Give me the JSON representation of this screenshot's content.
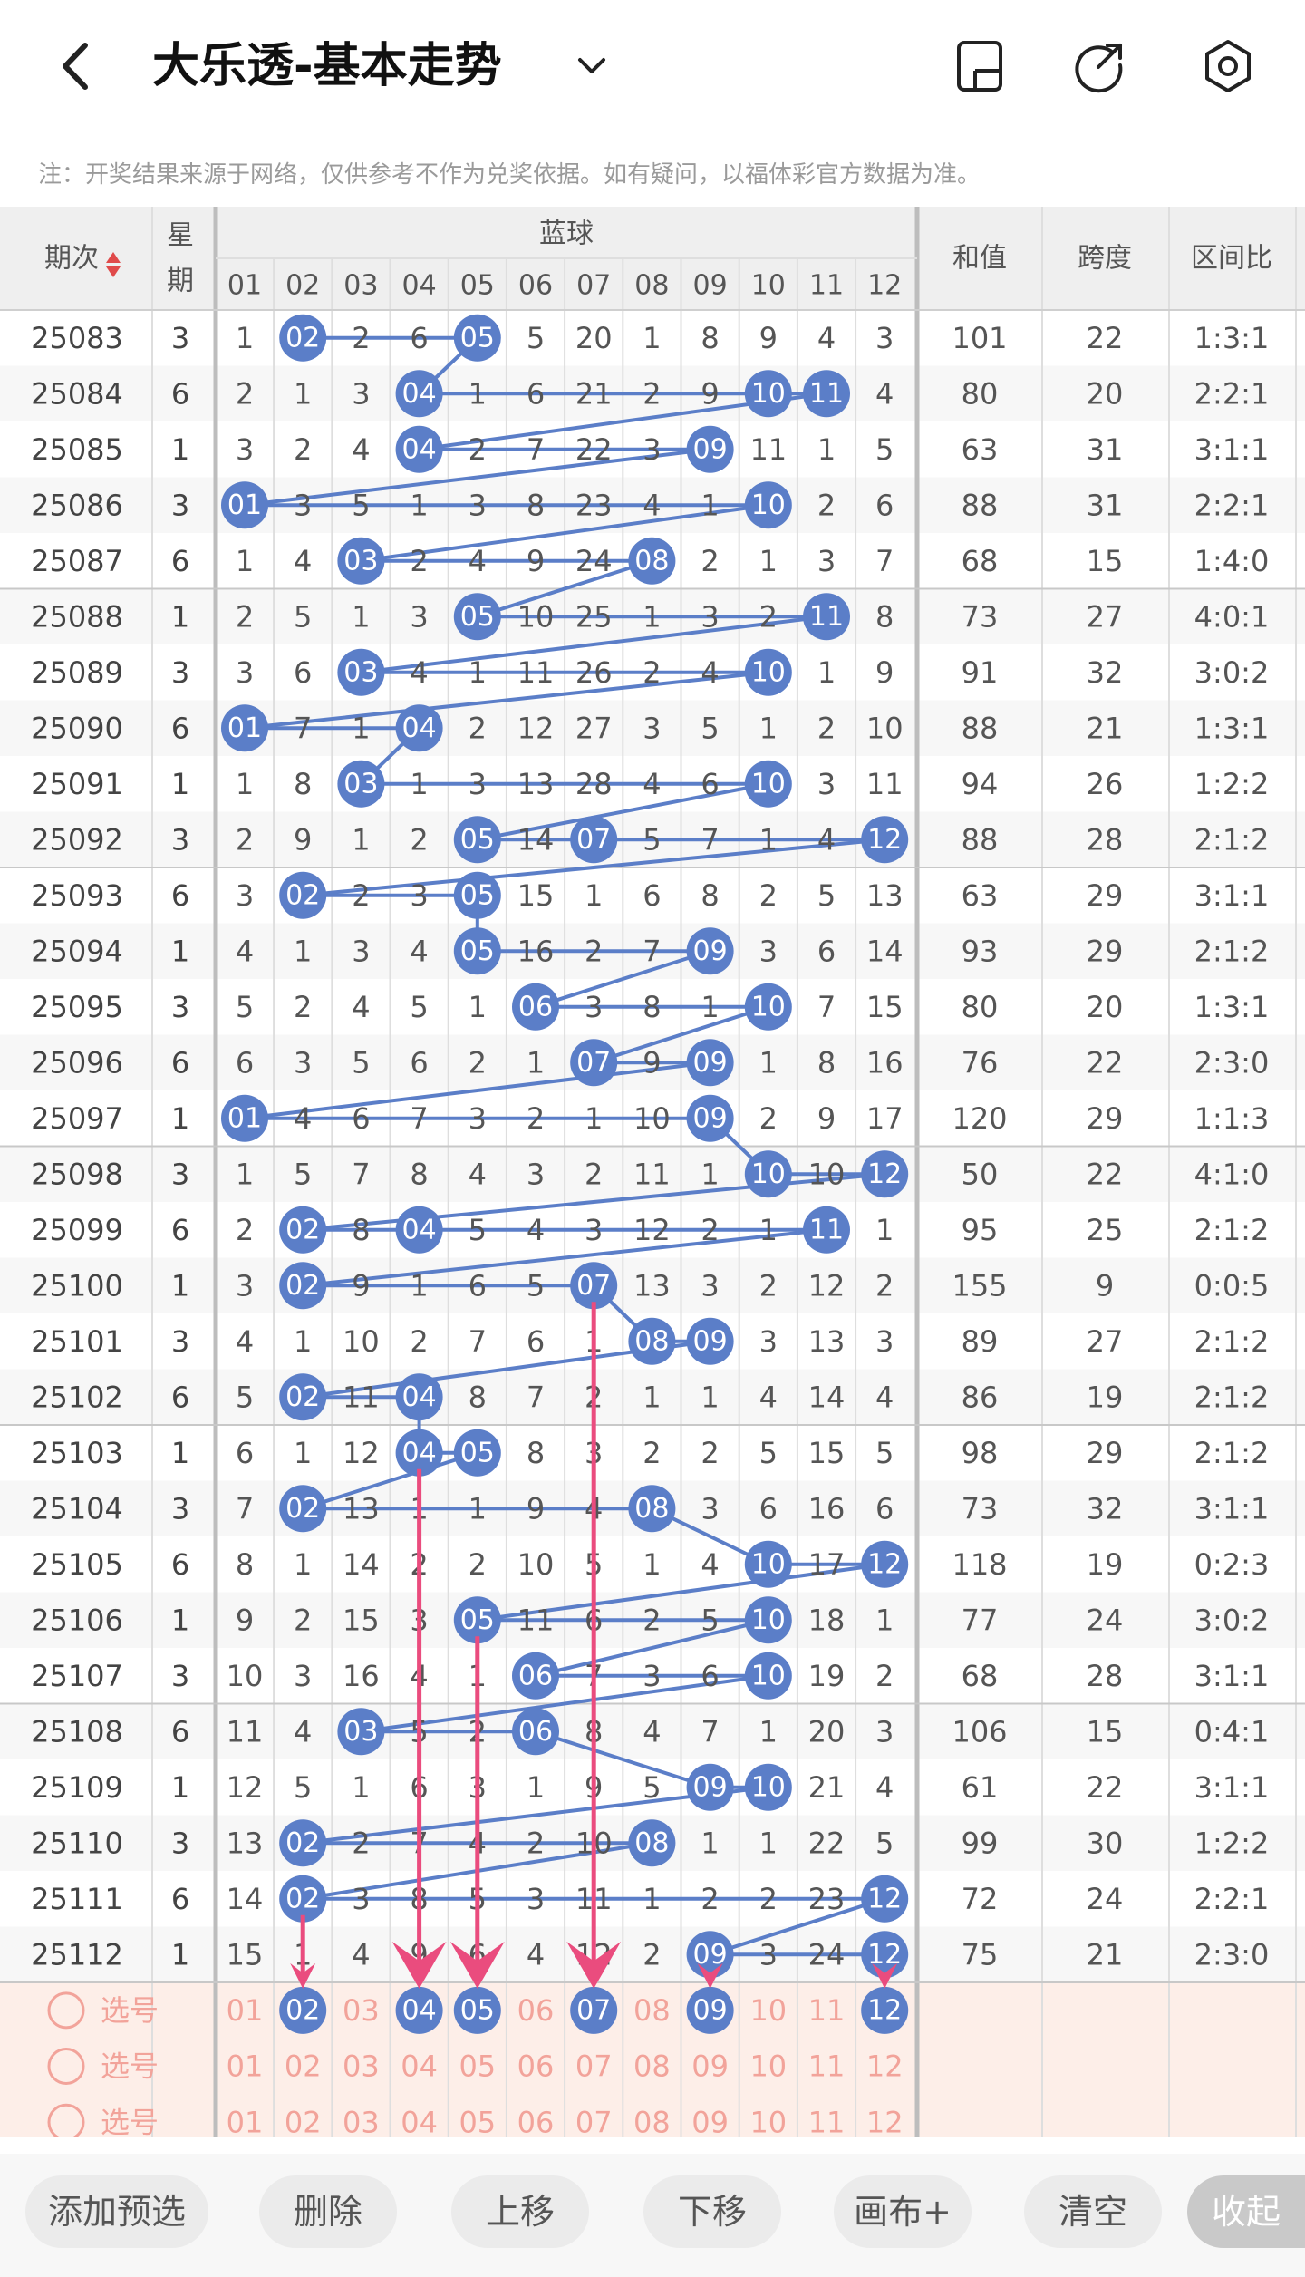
{
  "header": {
    "back_label": "‹",
    "title": "大乐透-基本走势",
    "dropdown": "chevron-down-icon",
    "icons": [
      "phone-layout-icon",
      "share-icon",
      "settings-icon"
    ]
  },
  "note": "注：开奖结果来源于网络，仅供参考不作为兑奖依据。如有疑问，以福体彩官方数据为准。",
  "table": {
    "col_issue": "期次",
    "col_week": "星期",
    "group_blue": "蓝球",
    "col_sum": "和值",
    "col_span": "跨度",
    "col_ratio": "区间比",
    "balls": [
      "01",
      "02",
      "03",
      "04",
      "05",
      "06",
      "07",
      "08",
      "09",
      "10",
      "11",
      "12"
    ],
    "rows": [
      {
        "issue": "25083",
        "week": "3",
        "cells": [
          "1",
          "02",
          "2",
          "6",
          "05",
          "5",
          "20",
          "1",
          "8",
          "9",
          "4",
          "3"
        ],
        "sum": "101",
        "span": "22",
        "ratio": "1:3:1"
      },
      {
        "issue": "25084",
        "week": "6",
        "cells": [
          "2",
          "1",
          "3",
          "04",
          "1",
          "6",
          "21",
          "2",
          "9",
          "10",
          "11",
          "4"
        ],
        "sum": "80",
        "span": "20",
        "ratio": "2:2:1"
      },
      {
        "issue": "25085",
        "week": "1",
        "cells": [
          "3",
          "2",
          "4",
          "04",
          "2",
          "7",
          "22",
          "3",
          "09",
          "11",
          "1",
          "5"
        ],
        "sum": "63",
        "span": "31",
        "ratio": "3:1:1"
      },
      {
        "issue": "25086",
        "week": "3",
        "cells": [
          "01",
          "3",
          "5",
          "1",
          "3",
          "8",
          "23",
          "4",
          "1",
          "10",
          "2",
          "6"
        ],
        "sum": "88",
        "span": "31",
        "ratio": "2:2:1"
      },
      {
        "issue": "25087",
        "week": "6",
        "cells": [
          "1",
          "4",
          "03",
          "2",
          "4",
          "9",
          "24",
          "08",
          "2",
          "1",
          "3",
          "7"
        ],
        "sum": "68",
        "span": "15",
        "ratio": "1:4:0"
      },
      {
        "issue": "25088",
        "week": "1",
        "cells": [
          "2",
          "5",
          "1",
          "3",
          "05",
          "10",
          "25",
          "1",
          "3",
          "2",
          "11",
          "8"
        ],
        "sum": "73",
        "span": "27",
        "ratio": "4:0:1"
      },
      {
        "issue": "25089",
        "week": "3",
        "cells": [
          "3",
          "6",
          "03",
          "4",
          "1",
          "11",
          "26",
          "2",
          "4",
          "10",
          "1",
          "9"
        ],
        "sum": "91",
        "span": "32",
        "ratio": "3:0:2"
      },
      {
        "issue": "25090",
        "week": "6",
        "cells": [
          "01",
          "7",
          "1",
          "04",
          "2",
          "12",
          "27",
          "3",
          "5",
          "1",
          "2",
          "10"
        ],
        "sum": "88",
        "span": "21",
        "ratio": "1:3:1"
      },
      {
        "issue": "25091",
        "week": "1",
        "cells": [
          "1",
          "8",
          "03",
          "1",
          "3",
          "13",
          "28",
          "4",
          "6",
          "10",
          "3",
          "11"
        ],
        "sum": "94",
        "span": "26",
        "ratio": "1:2:2"
      },
      {
        "issue": "25092",
        "week": "3",
        "cells": [
          "2",
          "9",
          "1",
          "2",
          "05",
          "14",
          "07",
          "5",
          "7",
          "1",
          "4",
          "12"
        ],
        "sum": "88",
        "span": "28",
        "ratio": "2:1:2"
      },
      {
        "issue": "25093",
        "week": "6",
        "cells": [
          "3",
          "02",
          "2",
          "3",
          "05",
          "15",
          "1",
          "6",
          "8",
          "2",
          "5",
          "13"
        ],
        "sum": "63",
        "span": "29",
        "ratio": "3:1:1"
      },
      {
        "issue": "25094",
        "week": "1",
        "cells": [
          "4",
          "1",
          "3",
          "4",
          "05",
          "16",
          "2",
          "7",
          "09",
          "3",
          "6",
          "14"
        ],
        "sum": "93",
        "span": "29",
        "ratio": "2:1:2"
      },
      {
        "issue": "25095",
        "week": "3",
        "cells": [
          "5",
          "2",
          "4",
          "5",
          "1",
          "06",
          "3",
          "8",
          "1",
          "10",
          "7",
          "15"
        ],
        "sum": "80",
        "span": "20",
        "ratio": "1:3:1"
      },
      {
        "issue": "25096",
        "week": "6",
        "cells": [
          "6",
          "3",
          "5",
          "6",
          "2",
          "1",
          "07",
          "9",
          "09",
          "1",
          "8",
          "16"
        ],
        "sum": "76",
        "span": "22",
        "ratio": "2:3:0"
      },
      {
        "issue": "25097",
        "week": "1",
        "cells": [
          "01",
          "4",
          "6",
          "7",
          "3",
          "2",
          "1",
          "10",
          "09",
          "2",
          "9",
          "17"
        ],
        "sum": "120",
        "span": "29",
        "ratio": "1:1:3"
      },
      {
        "issue": "25098",
        "week": "3",
        "cells": [
          "1",
          "5",
          "7",
          "8",
          "4",
          "3",
          "2",
          "11",
          "1",
          "10",
          "10",
          "12"
        ],
        "sum": "50",
        "span": "22",
        "ratio": "4:1:0"
      },
      {
        "issue": "25099",
        "week": "6",
        "cells": [
          "2",
          "02",
          "8",
          "04",
          "5",
          "4",
          "3",
          "12",
          "2",
          "1",
          "11",
          "1"
        ],
        "sum": "95",
        "span": "25",
        "ratio": "2:1:2"
      },
      {
        "issue": "25100",
        "week": "1",
        "cells": [
          "3",
          "02",
          "9",
          "1",
          "6",
          "5",
          "07",
          "13",
          "3",
          "2",
          "12",
          "2"
        ],
        "sum": "155",
        "span": "9",
        "ratio": "0:0:5"
      },
      {
        "issue": "25101",
        "week": "3",
        "cells": [
          "4",
          "1",
          "10",
          "2",
          "7",
          "6",
          "1",
          "08",
          "09",
          "3",
          "13",
          "3"
        ],
        "sum": "89",
        "span": "27",
        "ratio": "2:1:2"
      },
      {
        "issue": "25102",
        "week": "6",
        "cells": [
          "5",
          "02",
          "11",
          "04",
          "8",
          "7",
          "2",
          "1",
          "1",
          "4",
          "14",
          "4"
        ],
        "sum": "86",
        "span": "19",
        "ratio": "2:1:2"
      },
      {
        "issue": "25103",
        "week": "1",
        "cells": [
          "6",
          "1",
          "12",
          "04",
          "05",
          "8",
          "3",
          "2",
          "2",
          "5",
          "15",
          "5"
        ],
        "sum": "98",
        "span": "29",
        "ratio": "2:1:2"
      },
      {
        "issue": "25104",
        "week": "3",
        "cells": [
          "7",
          "02",
          "13",
          "1",
          "1",
          "9",
          "4",
          "08",
          "3",
          "6",
          "16",
          "6"
        ],
        "sum": "73",
        "span": "32",
        "ratio": "3:1:1"
      },
      {
        "issue": "25105",
        "week": "6",
        "cells": [
          "8",
          "1",
          "14",
          "2",
          "2",
          "10",
          "5",
          "1",
          "4",
          "10",
          "17",
          "12"
        ],
        "sum": "118",
        "span": "19",
        "ratio": "0:2:3"
      },
      {
        "issue": "25106",
        "week": "1",
        "cells": [
          "9",
          "2",
          "15",
          "3",
          "05",
          "11",
          "6",
          "2",
          "5",
          "10",
          "18",
          "1"
        ],
        "sum": "77",
        "span": "24",
        "ratio": "3:0:2"
      },
      {
        "issue": "25107",
        "week": "3",
        "cells": [
          "10",
          "3",
          "16",
          "4",
          "1",
          "06",
          "7",
          "3",
          "6",
          "10",
          "19",
          "2"
        ],
        "sum": "68",
        "span": "28",
        "ratio": "3:1:1"
      },
      {
        "issue": "25108",
        "week": "6",
        "cells": [
          "11",
          "4",
          "03",
          "5",
          "2",
          "06",
          "8",
          "4",
          "7",
          "1",
          "20",
          "3"
        ],
        "sum": "106",
        "span": "15",
        "ratio": "0:4:1"
      },
      {
        "issue": "25109",
        "week": "1",
        "cells": [
          "12",
          "5",
          "1",
          "6",
          "3",
          "1",
          "9",
          "5",
          "09",
          "10",
          "21",
          "4"
        ],
        "sum": "61",
        "span": "22",
        "ratio": "3:1:1"
      },
      {
        "issue": "25110",
        "week": "3",
        "cells": [
          "13",
          "02",
          "2",
          "7",
          "4",
          "2",
          "10",
          "08",
          "1",
          "1",
          "22",
          "5"
        ],
        "sum": "99",
        "span": "30",
        "ratio": "1:2:2"
      },
      {
        "issue": "25111",
        "week": "6",
        "cells": [
          "14",
          "02",
          "3",
          "8",
          "5",
          "3",
          "11",
          "1",
          "2",
          "2",
          "23",
          "12"
        ],
        "sum": "72",
        "span": "24",
        "ratio": "2:2:1"
      },
      {
        "issue": "25112",
        "week": "1",
        "cells": [
          "15",
          "1",
          "4",
          "9",
          "6",
          "4",
          "12",
          "2",
          "09",
          "3",
          "24",
          "12"
        ],
        "sum": "75",
        "span": "21",
        "ratio": "2:3:0"
      }
    ],
    "pick_rows": [
      {
        "label": "选号",
        "selected": [
          "02",
          "04",
          "05",
          "07",
          "09",
          "12"
        ]
      },
      {
        "label": "选号",
        "selected": []
      },
      {
        "label": "选号",
        "selected": []
      }
    ]
  },
  "toolbar": {
    "buttons": [
      "添加预选",
      "删除",
      "上移",
      "下移",
      "画布+",
      "清空",
      "收起"
    ]
  },
  "colors": {
    "ball": "#5b7ec8",
    "line": "#5b7ec8",
    "arrow": "#ea4c7e",
    "pick_bg": "#fdeee8",
    "pick_text": "#f2a39a",
    "row_alt": "#f7f7f7",
    "header_bg": "#efefef"
  }
}
